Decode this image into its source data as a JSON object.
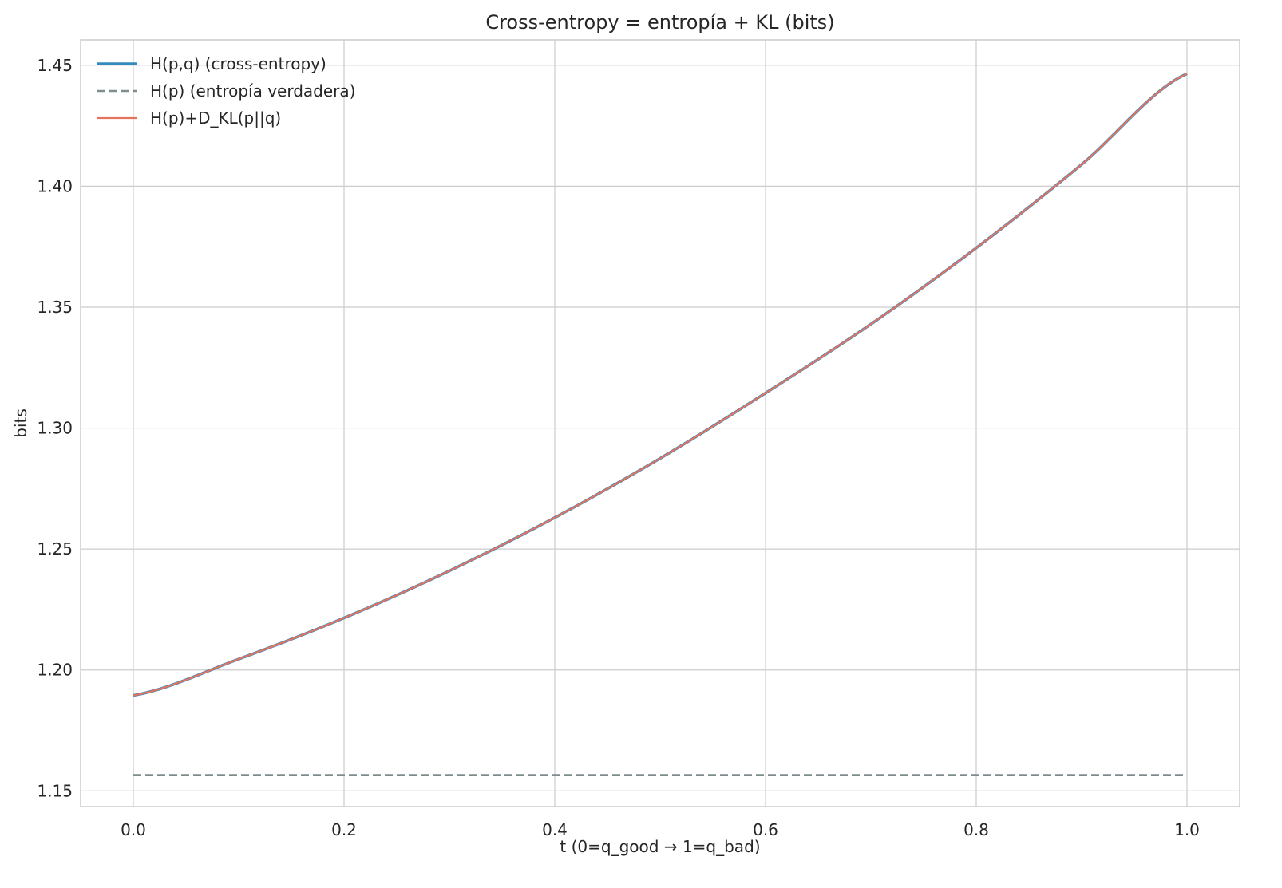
{
  "chart_data": {
    "type": "line",
    "title": "Cross-entropy = entropía + KL (bits)",
    "xlabel": "t (0=q_good → 1=q_bad)",
    "ylabel": "bits",
    "xlim": [
      -0.05,
      1.05
    ],
    "ylim": [
      1.1435,
      1.4605
    ],
    "xticks": [
      0.0,
      0.2,
      0.4,
      0.6,
      0.8,
      1.0
    ],
    "xtick_labels": [
      "0.0",
      "0.2",
      "0.4",
      "0.6",
      "0.8",
      "1.0"
    ],
    "yticks": [
      1.15,
      1.2,
      1.25,
      1.3,
      1.35,
      1.4,
      1.45
    ],
    "ytick_labels": [
      "1.15",
      "1.20",
      "1.25",
      "1.30",
      "1.35",
      "1.40",
      "1.45"
    ],
    "grid": true,
    "legend_position": "top-left",
    "x": [
      0.0,
      0.1,
      0.2,
      0.3,
      0.4,
      0.5,
      0.6,
      0.7,
      0.8,
      0.9,
      1.0
    ],
    "series": [
      {
        "name": "H(p,q) (cross-entropy)",
        "style": "solid-thick",
        "color": "#348ABD",
        "values": [
          1.1895,
          1.2045,
          1.2215,
          1.241,
          1.263,
          1.2875,
          1.3145,
          1.343,
          1.3745,
          1.409,
          1.4465
        ]
      },
      {
        "name": "H(p) (entropía verdadera)",
        "style": "dashed",
        "color": "#7F8C8D",
        "values": [
          1.1565,
          1.1565,
          1.1565,
          1.1565,
          1.1565,
          1.1565,
          1.1565,
          1.1565,
          1.1565,
          1.1565,
          1.1565
        ]
      },
      {
        "name": "H(p)+D_KL(p||q)",
        "style": "solid",
        "color": "#E5735E",
        "values": [
          1.1895,
          1.2045,
          1.2215,
          1.241,
          1.263,
          1.2875,
          1.3145,
          1.343,
          1.3745,
          1.409,
          1.4465
        ]
      }
    ]
  }
}
